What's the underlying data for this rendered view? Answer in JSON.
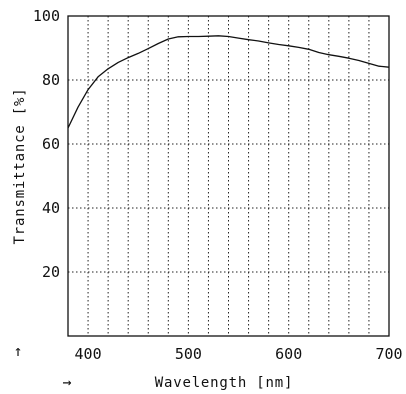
{
  "chart_data": {
    "type": "line",
    "xlabel": "Wavelength [nm]",
    "ylabel": "Transmittance [%]",
    "x_arrow_glyph": "→",
    "y_arrow_glyph": "↑",
    "xlim": [
      380,
      700
    ],
    "ylim": [
      0,
      100
    ],
    "x_ticks": [
      400,
      500,
      600,
      700
    ],
    "y_ticks": [
      20,
      40,
      60,
      80,
      100
    ],
    "x_grid_step": 20,
    "y_grid_step": 20,
    "grid": true,
    "grid_style": "dotted",
    "series": [
      {
        "x": [
          380,
          390,
          400,
          410,
          420,
          430,
          440,
          450,
          460,
          470,
          480,
          490,
          500,
          510,
          520,
          530,
          540,
          550,
          560,
          570,
          580,
          590,
          600,
          610,
          620,
          630,
          640,
          650,
          660,
          670,
          680,
          690,
          700
        ],
        "y": [
          65,
          71.5,
          77,
          81,
          83.5,
          85.5,
          87,
          88.3,
          89.8,
          91.4,
          92.8,
          93.5,
          93.6,
          93.6,
          93.7,
          93.8,
          93.6,
          93.1,
          92.6,
          92.2,
          91.6,
          91.1,
          90.7,
          90.2,
          89.6,
          88.6,
          87.9,
          87.4,
          86.8,
          86.1,
          85.2,
          84.3,
          84.0
        ]
      }
    ]
  }
}
